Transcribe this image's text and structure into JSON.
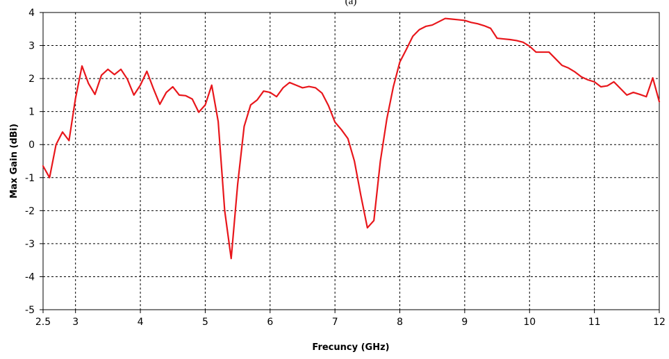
{
  "chart_data": {
    "type": "line",
    "panel_caption": "(a)",
    "xlabel": "Frecuncy (GHz)",
    "ylabel": "Max Gain (dBi)",
    "xlim": [
      2.5,
      12
    ],
    "ylim": [
      -5,
      4
    ],
    "x_ticks": [
      {
        "value": 2.5,
        "label": "2.5"
      },
      {
        "value": 3,
        "label": "3"
      },
      {
        "value": 4,
        "label": "4"
      },
      {
        "value": 5,
        "label": "5"
      },
      {
        "value": 6,
        "label": "6"
      },
      {
        "value": 7,
        "label": "7"
      },
      {
        "value": 8,
        "label": "8"
      },
      {
        "value": 9,
        "label": "9"
      },
      {
        "value": 10,
        "label": "10"
      },
      {
        "value": 11,
        "label": "11"
      },
      {
        "value": 12,
        "label": "12"
      }
    ],
    "y_ticks": [
      {
        "value": 4,
        "label": "4"
      },
      {
        "value": 3,
        "label": "3"
      },
      {
        "value": 2,
        "label": "2"
      },
      {
        "value": 1,
        "label": "1"
      },
      {
        "value": 0,
        "label": "0"
      },
      {
        "value": -1,
        "label": "-1"
      },
      {
        "value": -2,
        "label": "-2"
      },
      {
        "value": -3,
        "label": "-3"
      },
      {
        "value": -4,
        "label": "-4"
      },
      {
        "value": -5,
        "label": "-5"
      }
    ],
    "grid": true,
    "series": [
      {
        "color": "#e8161b",
        "x": [
          2.5,
          2.6,
          2.7,
          2.8,
          2.9,
          3.0,
          3.1,
          3.2,
          3.3,
          3.4,
          3.5,
          3.6,
          3.7,
          3.8,
          3.9,
          4.0,
          4.1,
          4.2,
          4.3,
          4.4,
          4.5,
          4.6,
          4.7,
          4.8,
          4.9,
          5.0,
          5.1,
          5.2,
          5.3,
          5.4,
          5.5,
          5.6,
          5.7,
          5.8,
          5.9,
          6.0,
          6.1,
          6.2,
          6.3,
          6.4,
          6.5,
          6.6,
          6.7,
          6.8,
          6.9,
          7.0,
          7.1,
          7.2,
          7.3,
          7.4,
          7.5,
          7.6,
          7.7,
          7.8,
          7.9,
          8.0,
          8.1,
          8.2,
          8.3,
          8.4,
          8.5,
          8.6,
          8.7,
          8.8,
          8.9,
          9.0,
          9.1,
          9.2,
          9.3,
          9.4,
          9.5,
          9.6,
          9.7,
          9.8,
          9.9,
          10.0,
          10.1,
          10.2,
          10.3,
          10.4,
          10.5,
          10.6,
          10.7,
          10.8,
          10.9,
          11.0,
          11.1,
          11.2,
          11.3,
          11.4,
          11.5,
          11.6,
          11.7,
          11.8,
          11.9,
          12.0
        ],
        "y": [
          -0.65,
          -1.0,
          0.0,
          0.38,
          0.12,
          1.4,
          2.38,
          1.85,
          1.52,
          2.1,
          2.28,
          2.12,
          2.28,
          1.98,
          1.5,
          1.8,
          2.22,
          1.7,
          1.22,
          1.58,
          1.75,
          1.5,
          1.48,
          1.38,
          0.98,
          1.2,
          1.8,
          0.7,
          -2.0,
          -3.45,
          -1.2,
          0.55,
          1.2,
          1.35,
          1.62,
          1.58,
          1.45,
          1.72,
          1.88,
          1.8,
          1.72,
          1.76,
          1.72,
          1.56,
          1.18,
          0.68,
          0.45,
          0.18,
          -0.5,
          -1.55,
          -2.52,
          -2.3,
          -0.5,
          0.78,
          1.75,
          2.5,
          2.88,
          3.28,
          3.48,
          3.58,
          3.62,
          3.72,
          3.82,
          3.8,
          3.78,
          3.76,
          3.7,
          3.66,
          3.6,
          3.52,
          3.22,
          3.2,
          3.18,
          3.15,
          3.1,
          2.98,
          2.8,
          2.8,
          2.8,
          2.6,
          2.4,
          2.32,
          2.2,
          2.05,
          1.96,
          1.9,
          1.75,
          1.78,
          1.9,
          1.7,
          1.5,
          1.58,
          1.52,
          1.45,
          2.02,
          1.3
        ]
      }
    ]
  }
}
